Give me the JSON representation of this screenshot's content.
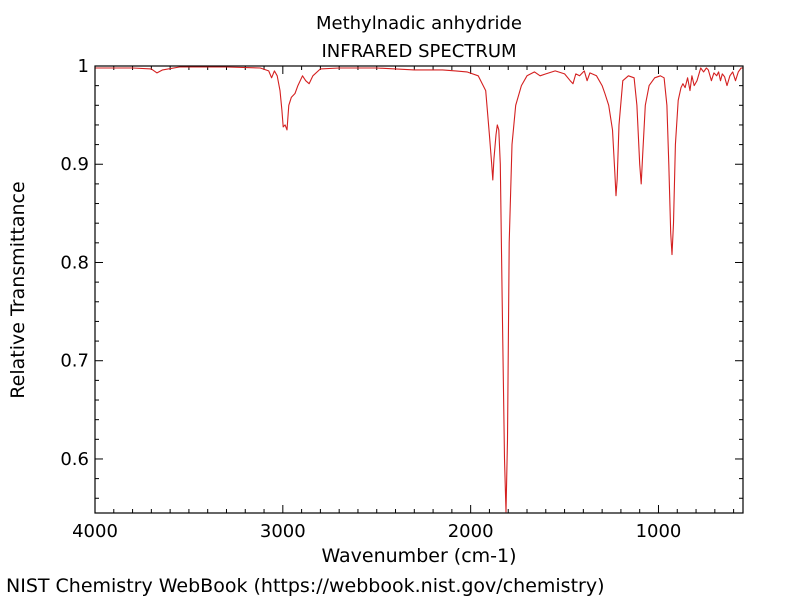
{
  "footer": {
    "credit": "NIST Chemistry WebBook (https://webbook.nist.gov/chemistry)"
  },
  "chart_data": {
    "type": "line",
    "title": "Methylnadic anhydride",
    "subtitle": "INFRARED SPECTRUM",
    "xlabel": "Wavenumber (cm-1)",
    "ylabel": "Relative Transmittance",
    "xlim": [
      4000,
      550
    ],
    "ylim": [
      0.545,
      1.0
    ],
    "x_reversed": true,
    "grid": false,
    "line_color": "#d42020",
    "x_ticks": [
      {
        "value": 4000,
        "label": "4000"
      },
      {
        "value": 3000,
        "label": "3000"
      },
      {
        "value": 2000,
        "label": "2000"
      },
      {
        "value": 1000,
        "label": "1000"
      }
    ],
    "y_ticks": [
      {
        "value": 1.0,
        "label": "1"
      },
      {
        "value": 0.9,
        "label": "0.9"
      },
      {
        "value": 0.8,
        "label": "0.8"
      },
      {
        "value": 0.7,
        "label": "0.7"
      },
      {
        "value": 0.6,
        "label": "0.6"
      }
    ],
    "series": [
      {
        "points": [
          [
            4000,
            0.998
          ],
          [
            3800,
            0.998
          ],
          [
            3700,
            0.997
          ],
          [
            3670,
            0.993
          ],
          [
            3640,
            0.996
          ],
          [
            3550,
            0.999
          ],
          [
            3300,
            0.999
          ],
          [
            3120,
            0.998
          ],
          [
            3075,
            0.995
          ],
          [
            3060,
            0.988
          ],
          [
            3045,
            0.995
          ],
          [
            3030,
            0.99
          ],
          [
            3015,
            0.975
          ],
          [
            3005,
            0.955
          ],
          [
            2998,
            0.938
          ],
          [
            2988,
            0.94
          ],
          [
            2978,
            0.935
          ],
          [
            2968,
            0.96
          ],
          [
            2955,
            0.968
          ],
          [
            2935,
            0.972
          ],
          [
            2920,
            0.98
          ],
          [
            2895,
            0.99
          ],
          [
            2878,
            0.985
          ],
          [
            2860,
            0.982
          ],
          [
            2840,
            0.99
          ],
          [
            2800,
            0.997
          ],
          [
            2700,
            0.998
          ],
          [
            2500,
            0.998
          ],
          [
            2300,
            0.996
          ],
          [
            2150,
            0.996
          ],
          [
            2080,
            0.995
          ],
          [
            2020,
            0.994
          ],
          [
            1960,
            0.99
          ],
          [
            1920,
            0.975
          ],
          [
            1900,
            0.93
          ],
          [
            1888,
            0.9
          ],
          [
            1882,
            0.884
          ],
          [
            1876,
            0.905
          ],
          [
            1865,
            0.93
          ],
          [
            1858,
            0.94
          ],
          [
            1850,
            0.935
          ],
          [
            1842,
            0.9
          ],
          [
            1832,
            0.76
          ],
          [
            1820,
            0.6
          ],
          [
            1812,
            0.546
          ],
          [
            1804,
            0.62
          ],
          [
            1795,
            0.82
          ],
          [
            1780,
            0.92
          ],
          [
            1760,
            0.96
          ],
          [
            1730,
            0.98
          ],
          [
            1700,
            0.99
          ],
          [
            1660,
            0.994
          ],
          [
            1630,
            0.99
          ],
          [
            1600,
            0.992
          ],
          [
            1550,
            0.995
          ],
          [
            1500,
            0.992
          ],
          [
            1470,
            0.985
          ],
          [
            1455,
            0.982
          ],
          [
            1440,
            0.992
          ],
          [
            1420,
            0.99
          ],
          [
            1395,
            0.995
          ],
          [
            1380,
            0.985
          ],
          [
            1365,
            0.993
          ],
          [
            1330,
            0.99
          ],
          [
            1300,
            0.98
          ],
          [
            1285,
            0.972
          ],
          [
            1265,
            0.96
          ],
          [
            1245,
            0.935
          ],
          [
            1232,
            0.89
          ],
          [
            1226,
            0.868
          ],
          [
            1220,
            0.885
          ],
          [
            1210,
            0.94
          ],
          [
            1190,
            0.985
          ],
          [
            1160,
            0.99
          ],
          [
            1130,
            0.988
          ],
          [
            1115,
            0.96
          ],
          [
            1100,
            0.9
          ],
          [
            1092,
            0.88
          ],
          [
            1084,
            0.91
          ],
          [
            1070,
            0.96
          ],
          [
            1050,
            0.98
          ],
          [
            1020,
            0.988
          ],
          [
            990,
            0.99
          ],
          [
            970,
            0.988
          ],
          [
            955,
            0.96
          ],
          [
            945,
            0.9
          ],
          [
            935,
            0.83
          ],
          [
            928,
            0.808
          ],
          [
            920,
            0.84
          ],
          [
            910,
            0.92
          ],
          [
            895,
            0.965
          ],
          [
            880,
            0.978
          ],
          [
            870,
            0.982
          ],
          [
            858,
            0.978
          ],
          [
            845,
            0.988
          ],
          [
            832,
            0.975
          ],
          [
            822,
            0.99
          ],
          [
            810,
            0.98
          ],
          [
            795,
            0.985
          ],
          [
            775,
            0.998
          ],
          [
            760,
            0.994
          ],
          [
            745,
            0.998
          ],
          [
            735,
            0.996
          ],
          [
            718,
            0.985
          ],
          [
            705,
            0.993
          ],
          [
            690,
            0.99
          ],
          [
            680,
            0.994
          ],
          [
            670,
            0.985
          ],
          [
            660,
            0.992
          ],
          [
            648,
            0.989
          ],
          [
            635,
            0.98
          ],
          [
            620,
            0.99
          ],
          [
            605,
            0.994
          ],
          [
            590,
            0.985
          ],
          [
            575,
            0.994
          ],
          [
            560,
            0.998
          ],
          [
            550,
            0.998
          ]
        ]
      }
    ]
  }
}
